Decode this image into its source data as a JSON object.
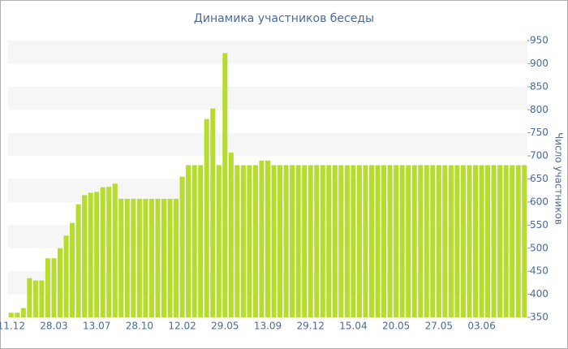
{
  "chart_data": {
    "type": "bar",
    "title": "Динамика участников беседы",
    "y_label": "Число участников",
    "categories": [
      "11.12",
      null,
      null,
      null,
      null,
      null,
      null,
      "28.03",
      null,
      null,
      null,
      null,
      null,
      null,
      "13.07",
      null,
      null,
      null,
      null,
      null,
      null,
      "28.10",
      null,
      null,
      null,
      null,
      null,
      null,
      "12.02",
      null,
      null,
      null,
      null,
      null,
      null,
      "29.05",
      null,
      null,
      null,
      null,
      null,
      null,
      "13.09",
      null,
      null,
      null,
      null,
      null,
      null,
      "29.12",
      null,
      null,
      null,
      null,
      null,
      null,
      "15.04",
      null,
      null,
      null,
      null,
      null,
      null,
      "20.05",
      null,
      null,
      null,
      null,
      null,
      null,
      "27.05",
      null,
      null,
      null,
      null,
      null,
      null,
      "03.06",
      null,
      null,
      null,
      null,
      null,
      null,
      null
    ],
    "values": [
      360,
      360,
      370,
      435,
      430,
      430,
      478,
      478,
      500,
      527,
      555,
      595,
      615,
      620,
      622,
      632,
      633,
      640,
      607,
      607,
      607,
      607,
      607,
      607,
      607,
      607,
      607,
      607,
      655,
      680,
      680,
      680,
      780,
      803,
      680,
      923,
      707,
      680,
      680,
      680,
      680,
      690,
      690,
      680,
      680,
      680,
      680,
      680,
      680,
      680,
      680,
      680,
      680,
      680,
      680,
      680,
      680,
      680,
      680,
      680,
      680,
      680,
      680,
      680,
      680,
      680,
      680,
      680,
      680,
      680,
      680,
      680,
      680,
      680,
      680,
      680,
      680,
      680,
      680,
      680,
      680,
      680,
      680,
      680,
      680
    ],
    "color": "#b6dd2e",
    "ylim": [
      350,
      950
    ],
    "yticks": [
      350,
      400,
      450,
      500,
      550,
      600,
      650,
      700,
      750,
      800,
      850,
      900,
      950
    ],
    "grid": true
  }
}
